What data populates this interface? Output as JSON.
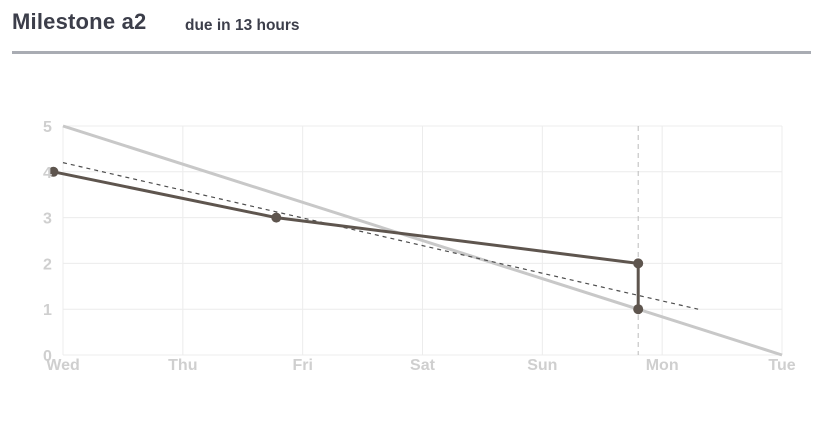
{
  "header": {
    "title": "Milestone a2",
    "subtitle": "due in 13 hours"
  },
  "colors": {
    "actual": "#5e554e",
    "ideal": "#c8c8c8",
    "trend": "#4d4d4d",
    "grid": "#ececec",
    "today": "#bbbbbb",
    "tick": "#cfcfcf"
  },
  "chart_data": {
    "type": "line",
    "title": "",
    "xlabel": "",
    "ylabel": "",
    "xlim": [
      0,
      6
    ],
    "ylim": [
      0,
      5
    ],
    "x_ticks": [
      {
        "value": 0,
        "label": "Wed"
      },
      {
        "value": 1,
        "label": "Thu"
      },
      {
        "value": 2,
        "label": "Fri"
      },
      {
        "value": 3,
        "label": "Sat"
      },
      {
        "value": 4,
        "label": "Sun"
      },
      {
        "value": 5,
        "label": "Mon"
      },
      {
        "value": 6,
        "label": "Tue"
      }
    ],
    "y_ticks": [
      0,
      1,
      2,
      3,
      4,
      5
    ],
    "today_x": 4.8,
    "series": [
      {
        "name": "ideal",
        "style": "solid-light",
        "points": [
          [
            0,
            5
          ],
          [
            6,
            0
          ]
        ]
      },
      {
        "name": "trend",
        "style": "dashed",
        "points": [
          [
            0,
            4.2
          ],
          [
            5.3,
            1.0
          ]
        ]
      },
      {
        "name": "actual",
        "style": "solid-dark",
        "markers": true,
        "points": [
          [
            -0.08,
            4
          ],
          [
            1.78,
            3
          ],
          [
            4.8,
            2
          ],
          [
            4.8,
            1
          ]
        ]
      }
    ]
  }
}
